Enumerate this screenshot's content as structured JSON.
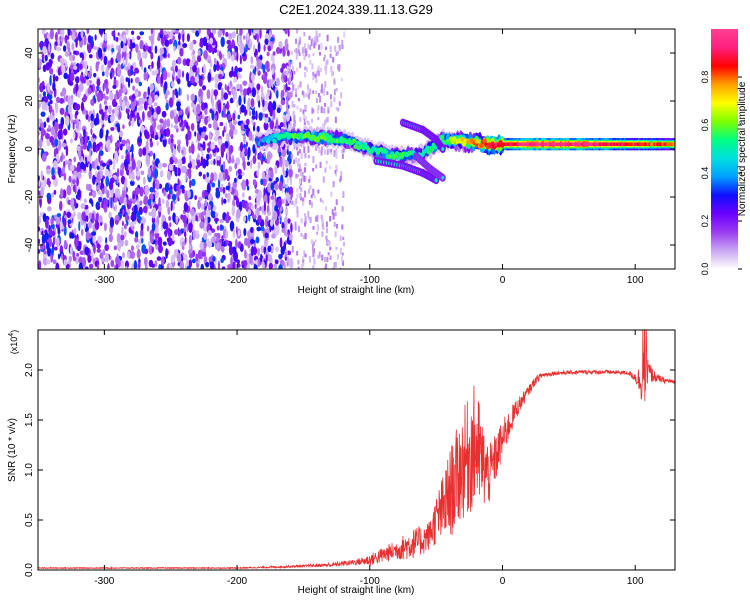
{
  "title": "C2E1.2024.339.11.13.G29",
  "chart_data": [
    {
      "type": "heatmap",
      "xlabel": "Height of straight line (km)",
      "ylabel": "Frequency (Hz)",
      "xlim": [
        -350,
        130
      ],
      "ylim": [
        -50,
        50
      ],
      "xticks": [
        -300,
        -200,
        -100,
        0,
        100
      ],
      "yticks": [
        -40,
        -20,
        0,
        20,
        40
      ],
      "colorbar": {
        "label": "Normalized spectral amplitude",
        "range": [
          0,
          1
        ],
        "ticks": [
          0.0,
          0.2,
          0.4,
          0.6,
          0.8
        ],
        "colors": [
          "#ffffff",
          "#c9a6f2",
          "#9b3cf0",
          "#6a00ff",
          "#1010ff",
          "#00a0ff",
          "#00e0e0",
          "#00ff80",
          "#7fff00",
          "#ffff00",
          "#ffa000",
          "#ff0000",
          "#ff2080",
          "#ff4090"
        ]
      },
      "noise_region_km": [
        -350,
        -165
      ],
      "ridge": [
        {
          "x": -185,
          "y": 3,
          "a": 0.35
        },
        {
          "x": -165,
          "y": 5,
          "a": 0.55
        },
        {
          "x": -140,
          "y": 5,
          "a": 0.6
        },
        {
          "x": -120,
          "y": 4,
          "a": 0.55
        },
        {
          "x": -100,
          "y": 0,
          "a": 0.5
        },
        {
          "x": -80,
          "y": -3,
          "a": 0.55
        },
        {
          "x": -60,
          "y": -2,
          "a": 0.5
        },
        {
          "x": -45,
          "y": 4,
          "a": 0.55
        },
        {
          "x": -30,
          "y": 3,
          "a": 0.7
        },
        {
          "x": -10,
          "y": 2,
          "a": 0.85
        },
        {
          "x": 20,
          "y": 2,
          "a": 0.95
        },
        {
          "x": 60,
          "y": 2,
          "a": 0.95
        },
        {
          "x": 100,
          "y": 2,
          "a": 0.85
        },
        {
          "x": 130,
          "y": 2,
          "a": 0.8
        }
      ],
      "branches": [
        {
          "points": [
            [
              -95,
              -5
            ],
            [
              -75,
              -7
            ],
            [
              -60,
              -10
            ],
            [
              -50,
              -13
            ]
          ],
          "a": 0.35
        },
        {
          "points": [
            [
              -75,
              11
            ],
            [
              -60,
              8
            ],
            [
              -50,
              4
            ],
            [
              -45,
              0
            ]
          ],
          "a": 0.35
        },
        {
          "points": [
            [
              -65,
              -3
            ],
            [
              -55,
              -8
            ],
            [
              -45,
              -12
            ]
          ],
          "a": 0.3
        }
      ]
    },
    {
      "type": "line",
      "xlabel": "Height of straight line (km)",
      "ylabel": "SNR (10 * v/v)",
      "yscale_label": "(x10",
      "yscale_exp": "4",
      "yscale_close": ")",
      "xlim": [
        -350,
        130
      ],
      "ylim": [
        0,
        2.4
      ],
      "xticks": [
        -300,
        -200,
        -100,
        0,
        100
      ],
      "yticks": [
        0.0,
        0.5,
        1.0,
        1.5,
        2.0
      ],
      "color": "#e83030",
      "x": [
        -350,
        -300,
        -250,
        -200,
        -170,
        -150,
        -130,
        -110,
        -100,
        -90,
        -80,
        -70,
        -60,
        -55,
        -50,
        -45,
        -40,
        -35,
        -30,
        -25,
        -20,
        -15,
        -10,
        0,
        10,
        20,
        25,
        30,
        40,
        60,
        80,
        95,
        100,
        105,
        107,
        110,
        115,
        120,
        130
      ],
      "y": [
        0.02,
        0.02,
        0.02,
        0.02,
        0.03,
        0.04,
        0.05,
        0.08,
        0.1,
        0.15,
        0.2,
        0.25,
        0.3,
        0.35,
        0.5,
        0.6,
        0.75,
        0.9,
        1.05,
        1.15,
        1.25,
        1.05,
        0.95,
        1.3,
        1.6,
        1.8,
        1.9,
        1.95,
        1.97,
        1.98,
        1.98,
        1.97,
        1.93,
        1.88,
        1.92,
        1.98,
        1.93,
        1.9,
        1.88
      ],
      "noise_amplitude": [
        0.005,
        0.005,
        0.005,
        0.005,
        0.01,
        0.01,
        0.02,
        0.03,
        0.06,
        0.08,
        0.1,
        0.15,
        0.15,
        0.15,
        0.25,
        0.35,
        0.45,
        0.5,
        0.55,
        0.6,
        0.65,
        0.45,
        0.3,
        0.2,
        0.1,
        0.05,
        0.04,
        0.03,
        0.02,
        0.02,
        0.02,
        0.02,
        0.05,
        0.2,
        0.35,
        0.12,
        0.05,
        0.03,
        0.02
      ]
    }
  ]
}
